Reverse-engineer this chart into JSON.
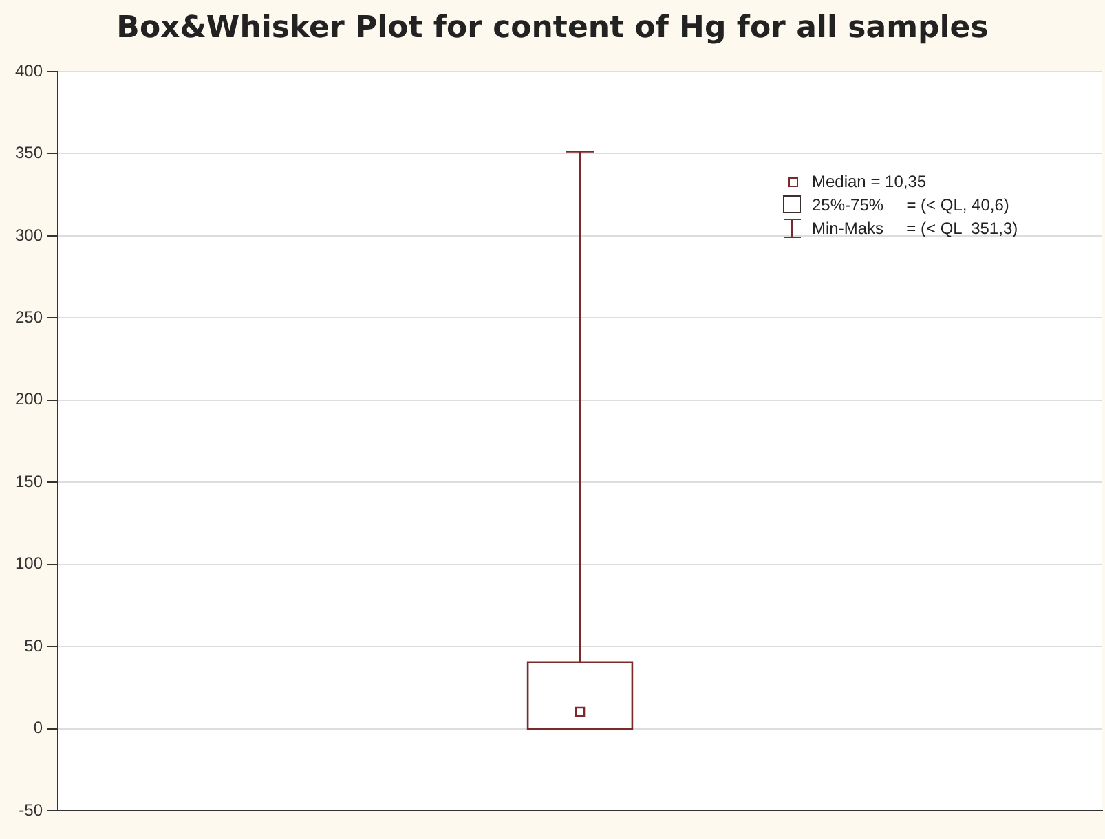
{
  "chart_data": {
    "type": "box",
    "title": "Box&Whisker Plot for content of Hg for all samples",
    "categories": [
      null
    ],
    "series": [
      {
        "color": "#7a2a2a",
        "boxes": [
          {
            "low": 0,
            "q1": 0,
            "median": 10.35,
            "q3": 40.6,
            "high": 351.3
          }
        ]
      }
    ],
    "ylim": [
      -50,
      400
    ],
    "yticks": [
      -50,
      0,
      50,
      100,
      150,
      200,
      250,
      300,
      350,
      400
    ],
    "grid": "y",
    "annotations": [
      "Median = 10,35",
      "25%-75%     = (< QL, 40,6)",
      "Min-Maks     = (< QL  351,3)"
    ]
  }
}
